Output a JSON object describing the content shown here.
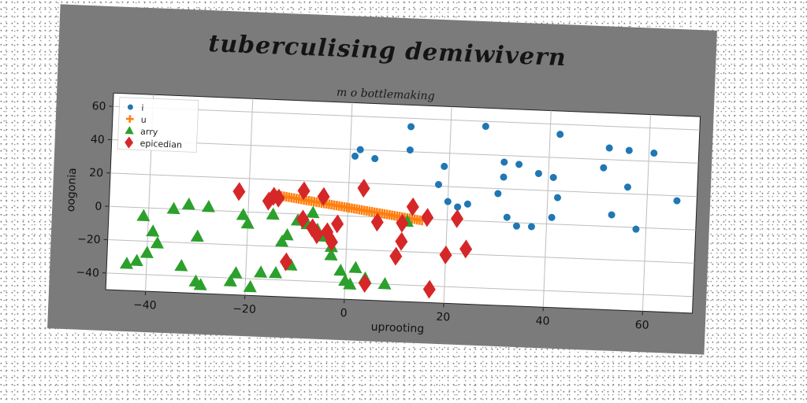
{
  "chart_data": {
    "type": "scatter",
    "title": "tuberculising demiwivern",
    "subtitle": "m o bottlemaking",
    "xlabel": "uprooting",
    "ylabel": "oogonia",
    "xlim": [
      -48,
      70
    ],
    "ylim": [
      -50,
      68
    ],
    "xticks": [
      -40,
      -20,
      0,
      20,
      40,
      60
    ],
    "yticks": [
      -40,
      -20,
      0,
      20,
      40,
      60
    ],
    "xtick_labels": [
      "−40",
      "−20",
      "0",
      "20",
      "40",
      "60"
    ],
    "ytick_labels": [
      "−40",
      "−20",
      "0",
      "20",
      "40",
      "60"
    ],
    "grid": true,
    "legend_position": "top-left",
    "series": [
      {
        "name": "i",
        "marker": "circle",
        "color": "#1f77b4",
        "points": [
          [
            1,
            36
          ],
          [
            2,
            40
          ],
          [
            5,
            35
          ],
          [
            12,
            55
          ],
          [
            12,
            41
          ],
          [
            18,
            21
          ],
          [
            19,
            32
          ],
          [
            20,
            11
          ],
          [
            22,
            8
          ],
          [
            24,
            10
          ],
          [
            27,
            57
          ],
          [
            30,
            17
          ],
          [
            31,
            36
          ],
          [
            31,
            27
          ],
          [
            32,
            3
          ],
          [
            34,
            35
          ],
          [
            34,
            -2
          ],
          [
            37,
            -2
          ],
          [
            38,
            30
          ],
          [
            41,
            4
          ],
          [
            41,
            28
          ],
          [
            42,
            54
          ],
          [
            42,
            16
          ],
          [
            51,
            35
          ],
          [
            52,
            47
          ],
          [
            53,
            7
          ],
          [
            56,
            46
          ],
          [
            56,
            24
          ],
          [
            58,
            -1
          ],
          [
            61,
            45
          ],
          [
            66,
            17
          ]
        ]
      },
      {
        "name": "u",
        "marker": "plus",
        "color": "#ff7f0e",
        "x_start": -15,
        "x_end": 15,
        "n": 60,
        "y_start": 11,
        "y_end": -1
      },
      {
        "name": "arry",
        "marker": "triangle",
        "color": "#2ca02c",
        "points": [
          [
            -44,
            -34
          ],
          [
            -42,
            -32
          ],
          [
            -41,
            -5
          ],
          [
            -40,
            -27
          ],
          [
            -39,
            -14
          ],
          [
            -38,
            -21
          ],
          [
            -35,
            0
          ],
          [
            -33,
            -34
          ],
          [
            -32,
            3
          ],
          [
            -30,
            -16
          ],
          [
            -30,
            -43
          ],
          [
            -29,
            -45
          ],
          [
            -28,
            2
          ],
          [
            -23,
            -42
          ],
          [
            -22,
            -37
          ],
          [
            -21,
            -2
          ],
          [
            -20,
            -7
          ],
          [
            -19,
            -45
          ],
          [
            -17,
            -36
          ],
          [
            -15,
            -1
          ],
          [
            -14,
            -36
          ],
          [
            -13,
            -17
          ],
          [
            -12,
            -13
          ],
          [
            -11,
            -31
          ],
          [
            -10,
            -4
          ],
          [
            -8,
            -6
          ],
          [
            -7,
            1
          ],
          [
            -6,
            -9
          ],
          [
            -5,
            -13
          ],
          [
            -3,
            -19
          ],
          [
            -3,
            -24
          ],
          [
            -1,
            -33
          ],
          [
            0,
            -39
          ],
          [
            1,
            -41
          ],
          [
            2,
            -31
          ],
          [
            4,
            -37
          ],
          [
            8,
            -40
          ],
          [
            12,
            -2
          ]
        ]
      },
      {
        "name": "epicedian",
        "marker": "diamond",
        "color": "#d62728",
        "points": [
          [
            -22,
            12
          ],
          [
            -16,
            7
          ],
          [
            -15,
            10
          ],
          [
            -14,
            9
          ],
          [
            -12,
            -29
          ],
          [
            -9,
            14
          ],
          [
            -9,
            -3
          ],
          [
            -7,
            -8
          ],
          [
            -6,
            -12
          ],
          [
            -5,
            11
          ],
          [
            -4,
            -10
          ],
          [
            -3,
            -16
          ],
          [
            -2,
            -5
          ],
          [
            3,
            17
          ],
          [
            4,
            -40
          ],
          [
            6,
            -3
          ],
          [
            10,
            -23
          ],
          [
            11,
            -3
          ],
          [
            11,
            -14
          ],
          [
            13,
            7
          ],
          [
            16,
            1
          ],
          [
            17,
            -42
          ],
          [
            20,
            -21
          ],
          [
            22,
            1
          ],
          [
            24,
            -17
          ]
        ]
      }
    ]
  }
}
